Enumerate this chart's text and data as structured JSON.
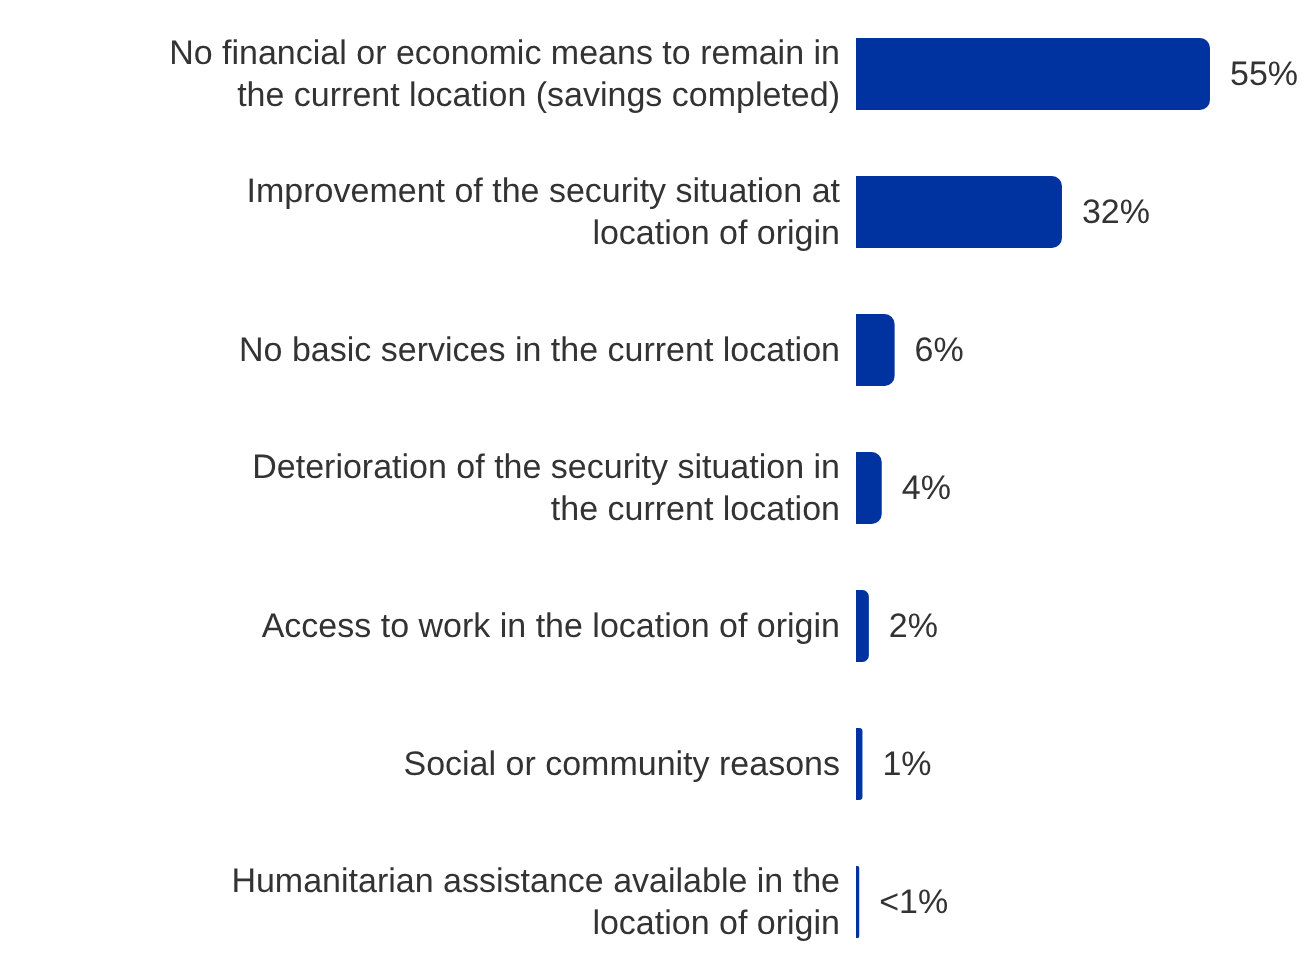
{
  "chart_data": {
    "type": "bar",
    "orientation": "horizontal",
    "categories": [
      "No financial or economic means to remain in the current location (savings completed)",
      "Improvement of the security situation at location of origin",
      "No basic services in the current location",
      "Deterioration of the security situation in the current location",
      "Access to work in the location of origin",
      "Social or community reasons",
      "Humanitarian assistance available in the location of origin"
    ],
    "values": [
      55,
      32,
      6,
      4,
      2,
      1,
      0.5
    ],
    "value_labels": [
      "55%",
      "32%",
      "6%",
      "4%",
      "2%",
      "1%",
      "<1%"
    ],
    "color": "#0033a0",
    "tick_labels": "y",
    "grid": false,
    "legend": false
  }
}
